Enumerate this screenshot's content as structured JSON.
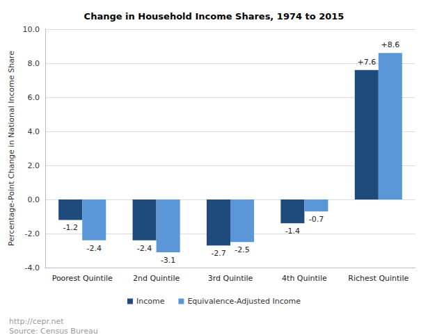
{
  "chart_data": {
    "type": "bar",
    "title": "Change in Household Income Shares, 1974 to 2015",
    "y_label": "Percentage-Point Change in National Income Share",
    "categories": [
      "Poorest Quintile",
      "2nd Quintile",
      "3rd Quintile",
      "4th Quintile",
      "Richest Quintile"
    ],
    "series": [
      {
        "name": "Income",
        "color": "#1f4a7c",
        "values": [
          -1.2,
          -2.4,
          -2.7,
          -1.4,
          7.6
        ],
        "value_labels": [
          "-1.2",
          "-2.4",
          "-2.7",
          "-1.4",
          "+7.6"
        ]
      },
      {
        "name": "Equivalence-Adjusted Income",
        "color": "#5b96d9",
        "values": [
          -2.4,
          -3.1,
          -2.5,
          -0.7,
          8.6
        ],
        "value_labels": [
          "-2.4",
          "-3.1",
          "-2.5",
          "-0.7",
          "+8.6"
        ]
      }
    ],
    "ylim": [
      -4,
      10
    ],
    "yticks": [
      {
        "value": -4,
        "label": "-4.0"
      },
      {
        "value": -2,
        "label": "-2.0"
      },
      {
        "value": 0,
        "label": "0.0"
      },
      {
        "value": 2,
        "label": "2.0"
      },
      {
        "value": 4,
        "label": "4.0"
      },
      {
        "value": 6,
        "label": "6.0"
      },
      {
        "value": 8,
        "label": "8.0"
      },
      {
        "value": 10,
        "label": "10.0"
      }
    ],
    "grid": true,
    "legend": "bottom",
    "data_labels": true,
    "notes": [
      "http://cepr.net",
      "Source: Census Bureau"
    ]
  }
}
